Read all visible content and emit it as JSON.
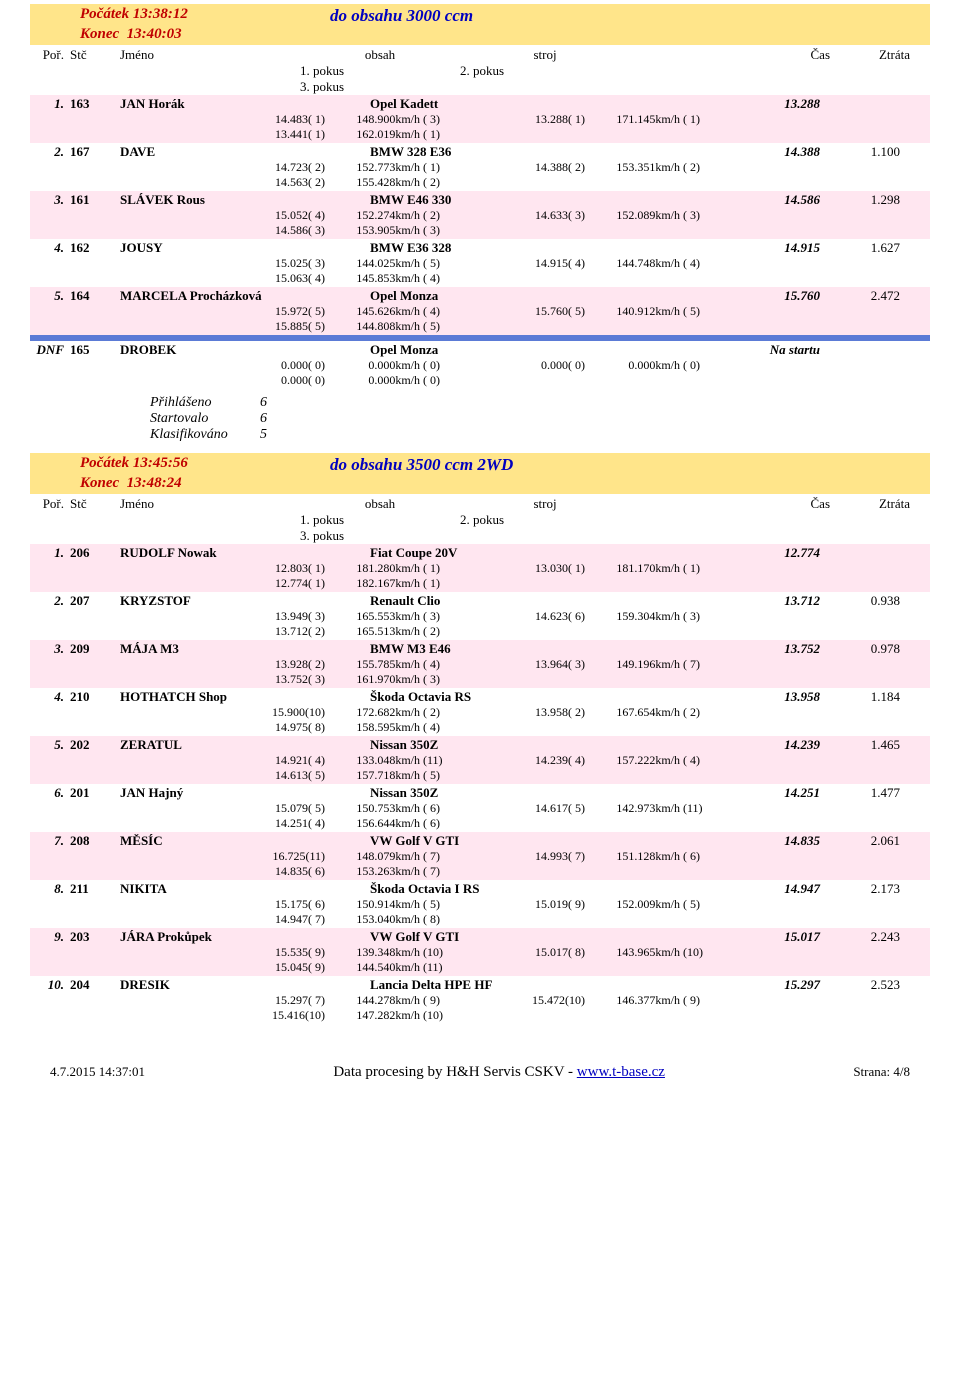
{
  "section1": {
    "start_label": "Počátek",
    "start_time": "13:38:12",
    "end_label": "Konec",
    "end_time": "13:40:03",
    "title": "do obsahu 3000 ccm",
    "head": {
      "por": "Poř.",
      "stc": "Stč",
      "jm": "Jméno",
      "ob": "obsah",
      "st": "stroj",
      "cas": "Čas",
      "zt": "Ztráta",
      "p1": "1. pokus",
      "p2": "2. pokus",
      "p3": "3. pokus"
    },
    "rows": [
      {
        "shade": true,
        "por": "1.",
        "stc": "163",
        "name": "JAN Horák",
        "car": "Opel Kadett",
        "best": "13.288",
        "loss": "",
        "a": [
          [
            "14.483( 1)",
            "148.900km/h",
            "( 3)",
            "13.288( 1)",
            "171.145km/h",
            "( 1)"
          ],
          [
            "13.441( 1)",
            "162.019km/h",
            "( 1)",
            "",
            "",
            ""
          ]
        ]
      },
      {
        "shade": false,
        "por": "2.",
        "stc": "167",
        "name": "DAVE",
        "car": "BMW 328 E36",
        "best": "14.388",
        "loss": "1.100",
        "a": [
          [
            "14.723( 2)",
            "152.773km/h",
            "( 1)",
            "14.388( 2)",
            "153.351km/h",
            "( 2)"
          ],
          [
            "14.563( 2)",
            "155.428km/h",
            "( 2)",
            "",
            "",
            ""
          ]
        ]
      },
      {
        "shade": true,
        "por": "3.",
        "stc": "161",
        "name": "SLÁVEK Rous",
        "car": "BMW E46 330",
        "best": "14.586",
        "loss": "1.298",
        "a": [
          [
            "15.052( 4)",
            "152.274km/h",
            "( 2)",
            "14.633( 3)",
            "152.089km/h",
            "( 3)"
          ],
          [
            "14.586( 3)",
            "153.905km/h",
            "( 3)",
            "",
            "",
            ""
          ]
        ]
      },
      {
        "shade": false,
        "por": "4.",
        "stc": "162",
        "name": "JOUSY",
        "car": "BMW E36 328",
        "best": "14.915",
        "loss": "1.627",
        "a": [
          [
            "15.025( 3)",
            "144.025km/h",
            "( 5)",
            "14.915( 4)",
            "144.748km/h",
            "( 4)"
          ],
          [
            "15.063( 4)",
            "145.853km/h",
            "( 4)",
            "",
            "",
            ""
          ]
        ]
      },
      {
        "shade": true,
        "por": "5.",
        "stc": "164",
        "name": "MARCELA Procházková",
        "car": "Opel Monza",
        "best": "15.760",
        "loss": "2.472",
        "a": [
          [
            "15.972( 5)",
            "145.626km/h",
            "( 4)",
            "15.760( 5)",
            "140.912km/h",
            "( 5)"
          ],
          [
            "15.885( 5)",
            "144.808km/h",
            "( 5)",
            "",
            "",
            ""
          ]
        ]
      }
    ],
    "dnf": {
      "label": "DNF",
      "stc": "165",
      "name": "DROBEK",
      "car": "Opel Monza",
      "status": "Na startu",
      "a": [
        [
          "0.000( 0)",
          "0.000km/h",
          "( 0)",
          "0.000( 0)",
          "0.000km/h",
          "( 0)"
        ],
        [
          "0.000( 0)",
          "0.000km/h",
          "( 0)",
          "",
          "",
          ""
        ]
      ]
    },
    "summary": [
      [
        "Přihlášeno",
        "6"
      ],
      [
        "Startovalo",
        "6"
      ],
      [
        "Klasifikováno",
        "5"
      ]
    ]
  },
  "section2": {
    "start_label": "Počátek",
    "start_time": "13:45:56",
    "end_label": "Konec",
    "end_time": "13:48:24",
    "title": "do obsahu 3500 ccm 2WD",
    "rows": [
      {
        "shade": true,
        "por": "1.",
        "stc": "206",
        "name": "RUDOLF Nowak",
        "car": "Fiat Coupe 20V",
        "best": "12.774",
        "loss": "",
        "a": [
          [
            "12.803( 1)",
            "181.280km/h",
            "( 1)",
            "13.030( 1)",
            "181.170km/h",
            "( 1)"
          ],
          [
            "12.774( 1)",
            "182.167km/h",
            "( 1)",
            "",
            "",
            ""
          ]
        ]
      },
      {
        "shade": false,
        "por": "2.",
        "stc": "207",
        "name": "KRYZSTOF",
        "car": "Renault Clio",
        "best": "13.712",
        "loss": "0.938",
        "a": [
          [
            "13.949( 3)",
            "165.553km/h",
            "( 3)",
            "14.623( 6)",
            "159.304km/h",
            "( 3)"
          ],
          [
            "13.712( 2)",
            "165.513km/h",
            "( 2)",
            "",
            "",
            ""
          ]
        ]
      },
      {
        "shade": true,
        "por": "3.",
        "stc": "209",
        "name": "MÁJA M3",
        "car": "BMW M3 E46",
        "best": "13.752",
        "loss": "0.978",
        "a": [
          [
            "13.928( 2)",
            "155.785km/h",
            "( 4)",
            "13.964( 3)",
            "149.196km/h",
            "( 7)"
          ],
          [
            "13.752( 3)",
            "161.970km/h",
            "( 3)",
            "",
            "",
            ""
          ]
        ]
      },
      {
        "shade": false,
        "por": "4.",
        "stc": "210",
        "name": "HOTHATCH Shop",
        "car": "Škoda Octavia RS",
        "best": "13.958",
        "loss": "1.184",
        "a": [
          [
            "15.900(10)",
            "172.682km/h",
            "( 2)",
            "13.958( 2)",
            "167.654km/h",
            "( 2)"
          ],
          [
            "14.975( 8)",
            "158.595km/h",
            "( 4)",
            "",
            "",
            ""
          ]
        ]
      },
      {
        "shade": true,
        "por": "5.",
        "stc": "202",
        "name": "ZERATUL",
        "car": "Nissan 350Z",
        "best": "14.239",
        "loss": "1.465",
        "a": [
          [
            "14.921( 4)",
            "133.048km/h",
            "(11)",
            "14.239( 4)",
            "157.222km/h",
            "( 4)"
          ],
          [
            "14.613( 5)",
            "157.718km/h",
            "( 5)",
            "",
            "",
            ""
          ]
        ]
      },
      {
        "shade": false,
        "por": "6.",
        "stc": "201",
        "name": "JAN Hajný",
        "car": "Nissan 350Z",
        "best": "14.251",
        "loss": "1.477",
        "a": [
          [
            "15.079( 5)",
            "150.753km/h",
            "( 6)",
            "14.617( 5)",
            "142.973km/h",
            "(11)"
          ],
          [
            "14.251( 4)",
            "156.644km/h",
            "( 6)",
            "",
            "",
            ""
          ]
        ]
      },
      {
        "shade": true,
        "por": "7.",
        "stc": "208",
        "name": "MĚSÍC",
        "car": "VW Golf V GTI",
        "best": "14.835",
        "loss": "2.061",
        "a": [
          [
            "16.725(11)",
            "148.079km/h",
            "( 7)",
            "14.993( 7)",
            "151.128km/h",
            "( 6)"
          ],
          [
            "14.835( 6)",
            "153.263km/h",
            "( 7)",
            "",
            "",
            ""
          ]
        ]
      },
      {
        "shade": false,
        "por": "8.",
        "stc": "211",
        "name": "NIKITA",
        "car": "Škoda Octavia I RS",
        "best": "14.947",
        "loss": "2.173",
        "a": [
          [
            "15.175( 6)",
            "150.914km/h",
            "( 5)",
            "15.019( 9)",
            "152.009km/h",
            "( 5)"
          ],
          [
            "14.947( 7)",
            "153.040km/h",
            "( 8)",
            "",
            "",
            ""
          ]
        ]
      },
      {
        "shade": true,
        "por": "9.",
        "stc": "203",
        "name": "JÁRA Prokůpek",
        "car": "VW Golf V GTI",
        "best": "15.017",
        "loss": "2.243",
        "a": [
          [
            "15.535( 9)",
            "139.348km/h",
            "(10)",
            "15.017( 8)",
            "143.965km/h",
            "(10)"
          ],
          [
            "15.045( 9)",
            "144.540km/h",
            "(11)",
            "",
            "",
            ""
          ]
        ]
      },
      {
        "shade": false,
        "por": "10.",
        "stc": "204",
        "name": "DRESIK",
        "car": "Lancia Delta HPE HF",
        "best": "15.297",
        "loss": "2.523",
        "a": [
          [
            "15.297( 7)",
            "144.278km/h",
            "( 9)",
            "15.472(10)",
            "146.377km/h",
            "( 9)"
          ],
          [
            "15.416(10)",
            "147.282km/h",
            "(10)",
            "",
            "",
            ""
          ]
        ]
      }
    ]
  },
  "footer": {
    "ts": "4.7.2015 14:37:01",
    "mid1": "Data procesing by H&H Servis CSKV - ",
    "link": "www.t-base.cz",
    "page": "Strana: 4/8"
  }
}
